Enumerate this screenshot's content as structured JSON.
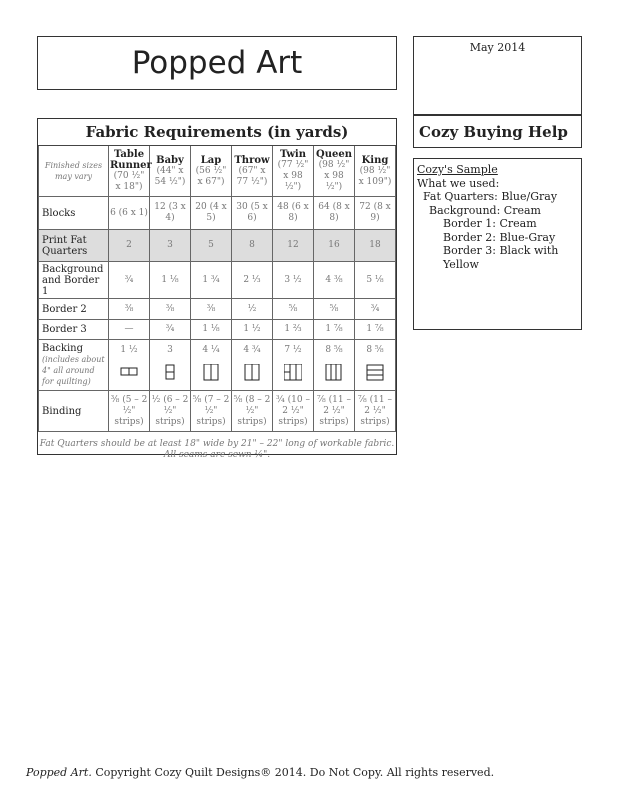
{
  "title": "Popped Art",
  "date": "May 2014",
  "help_title": "Cozy Buying Help",
  "sample": {
    "heading": "Cozy's Sample",
    "intro": "What we used:",
    "lines": [
      "Fat Quarters:  Blue/Gray",
      "Background: Cream",
      "Border 1:  Cream",
      "Border 2:  Blue-Gray",
      "Border 3:  Black with Yellow"
    ]
  },
  "table": {
    "title": "Fabric Requirements (in yards)",
    "corner_note": "Finished sizes may vary",
    "columns": [
      {
        "name": "Table Runner",
        "size": "(70 ½\" x 18\")"
      },
      {
        "name": "Baby",
        "size": "(44\" x 54 ½\")"
      },
      {
        "name": "Lap",
        "size": "(56 ½\" x 67\")"
      },
      {
        "name": "Throw",
        "size": "(67\" x 77 ½\")"
      },
      {
        "name": "Twin",
        "size": "(77 ½\" x 98 ½\")"
      },
      {
        "name": "Queen",
        "size": "(98 ½\" x 98 ½\")"
      },
      {
        "name": "King",
        "size": "(98 ½\" x 109\")"
      }
    ],
    "rows": [
      {
        "label": "Blocks",
        "values": [
          "6 (6 x 1)",
          "12 (3 x 4)",
          "20 (4 x 5)",
          "30 (5 x 6)",
          "48 (6 x 8)",
          "64 (8 x 8)",
          "72 (8 x 9)"
        ]
      },
      {
        "label": "Print Fat Quarters",
        "values": [
          "2",
          "3",
          "5",
          "8",
          "12",
          "16",
          "18"
        ],
        "shaded": true
      },
      {
        "label": "Background and Border 1",
        "values": [
          "¾",
          "1 ⅛",
          "1 ¾",
          "2 ⅓",
          "3 ½",
          "4 ⅜",
          "5 ⅛"
        ]
      },
      {
        "label": "Border 2",
        "values": [
          "⅜",
          "⅜",
          "⅜",
          "½",
          "⅝",
          "⅝",
          "¾"
        ]
      },
      {
        "label": "Border 3",
        "values": [
          "—",
          "¾",
          "1 ⅛",
          "1 ½",
          "1 ⅔",
          "1 ⅞",
          "1 ⅞"
        ]
      },
      {
        "label": "Backing",
        "sublabel": "(includes about 4\" all around for quilting)",
        "values": [
          "1 ½",
          "3",
          "4 ¼",
          "4 ¾",
          "7 ½",
          "8 ⅝",
          "8 ⅝"
        ]
      },
      {
        "label": "Binding",
        "values": [
          "⅜ (5 – 2 ½\" strips)",
          "½ (6 – 2 ½\" strips)",
          "⅝ (7 – 2 ½\" strips)",
          "⅝ (8 – 2 ½\" strips)",
          "¾ (10 – 2 ½\" strips)",
          "⅞ (11 – 2 ½\" strips)",
          "⅞ (11 – 2 ½\" strips)"
        ]
      }
    ],
    "backing_diagrams": [
      "2-horizontal-panels",
      "2-stacked-panels",
      "2-vertical-panels",
      "2-vertical-panels",
      "3-panels-with-split",
      "3-vertical-panels",
      "3-horizontal-panels"
    ],
    "note": "Fat Quarters should be at least 18\" wide by 21\" – 22\" long of workable fabric. All seams are sewn ¼\"."
  },
  "footer": {
    "italic": "Popped Art.",
    "text": " Copyright Cozy Quilt Designs® 2014. Do Not Copy. All rights reserved."
  }
}
